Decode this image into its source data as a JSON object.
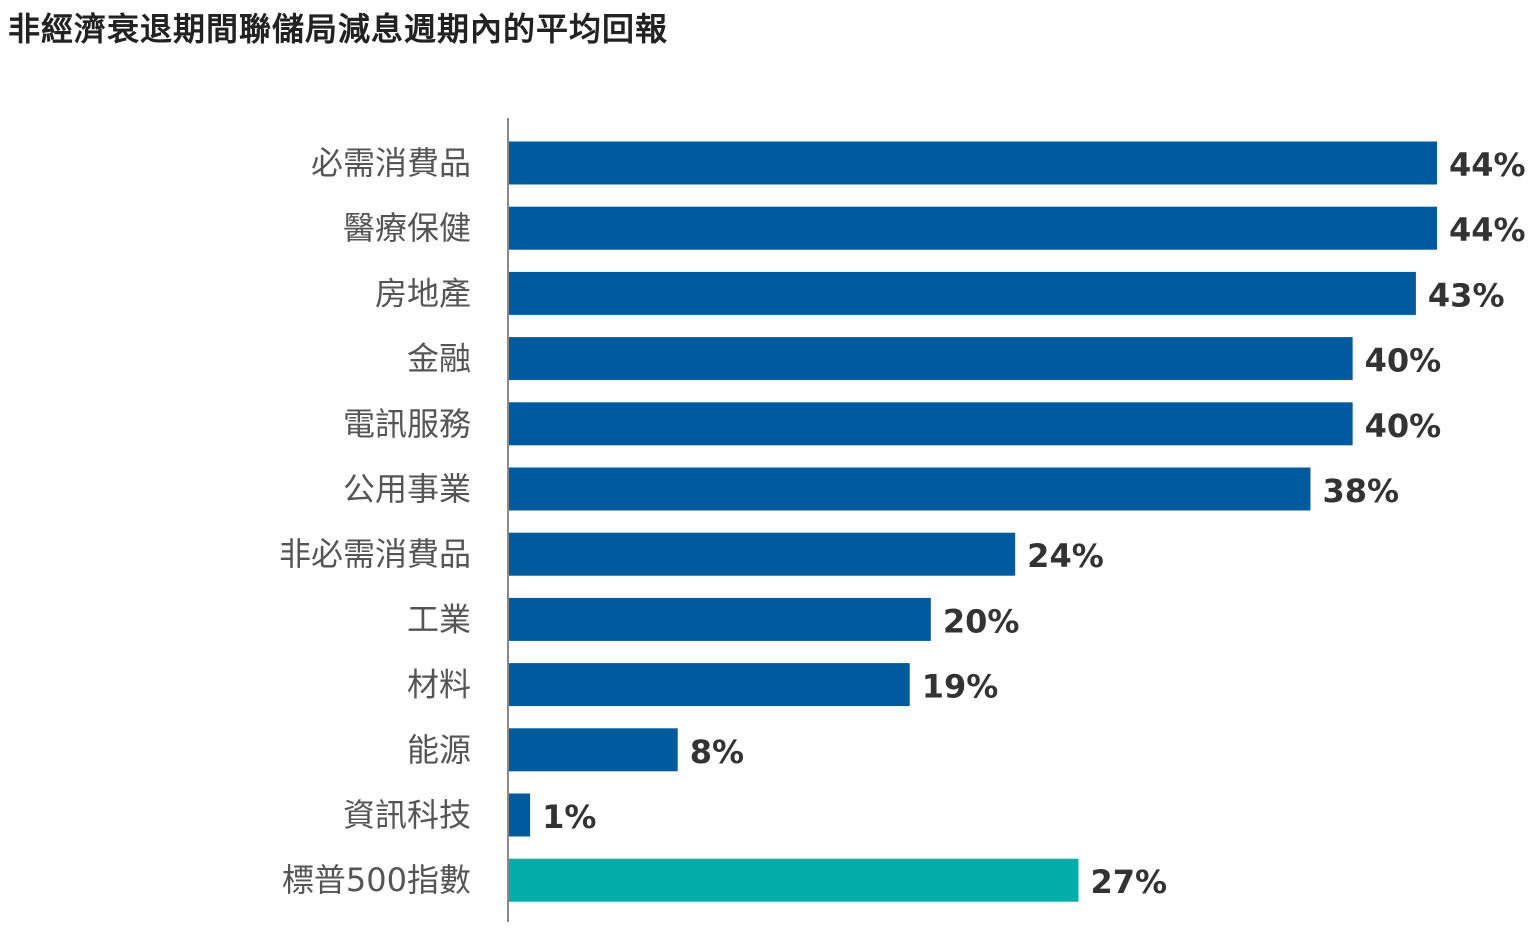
{
  "chart_data": {
    "type": "bar",
    "orientation": "horizontal",
    "title": "非經濟衰退期間聯儲局減息週期內的平均回報",
    "categories": [
      "必需消費品",
      "醫療保健",
      "房地產",
      "金融",
      "電訊服務",
      "公用事業",
      "非必需消費品",
      "工業",
      "材料",
      "能源",
      "資訊科技",
      "標普500指數"
    ],
    "values": [
      44,
      44,
      43,
      40,
      40,
      38,
      24,
      20,
      19,
      8,
      1,
      27
    ],
    "value_labels": [
      "44%",
      "44%",
      "43%",
      "40%",
      "40%",
      "38%",
      "24%",
      "20%",
      "19%",
      "8%",
      "1%",
      "27%"
    ],
    "bar_colors": [
      "#005b9e",
      "#005b9e",
      "#005b9e",
      "#005b9e",
      "#005b9e",
      "#005b9e",
      "#005b9e",
      "#005b9e",
      "#005b9e",
      "#005b9e",
      "#005b9e",
      "#00ada8"
    ],
    "xlim": [
      0,
      44
    ],
    "grid": false,
    "legend": "none"
  }
}
